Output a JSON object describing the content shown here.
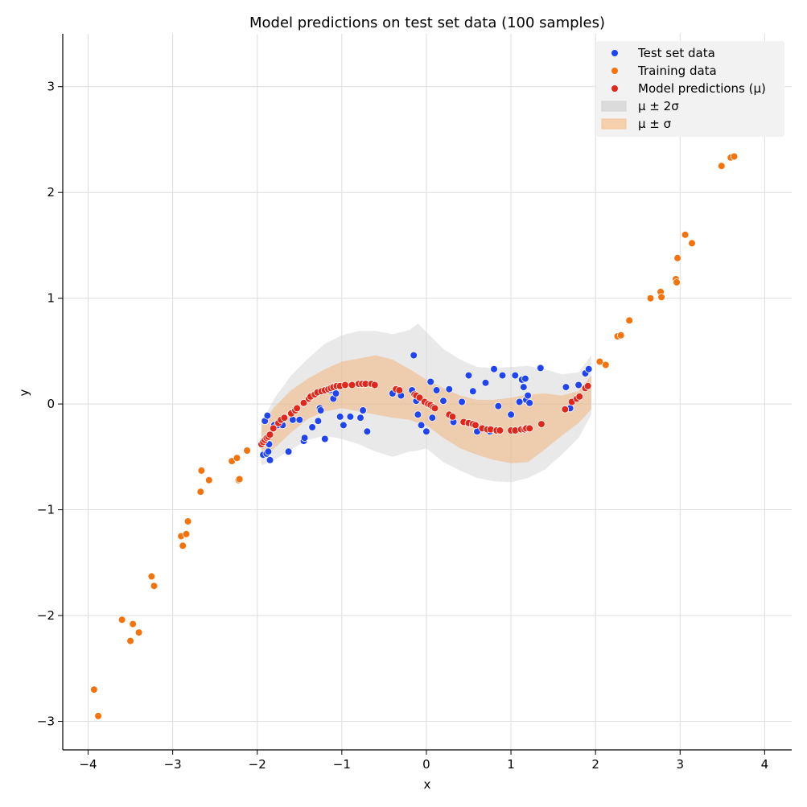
{
  "chart_data": {
    "type": "scatter",
    "title": "Model predictions on test set data (100 samples)",
    "xlabel": "x",
    "ylabel": "y",
    "xlim": [
      -4.3,
      4.32
    ],
    "ylim": [
      -3.27,
      3.5
    ],
    "x_ticks": [
      -4,
      -3,
      -2,
      -1,
      0,
      1,
      2,
      3,
      4
    ],
    "y_ticks": [
      -3,
      -2,
      -1,
      0,
      1,
      2,
      3
    ],
    "x_tick_labels": [
      "−4",
      "−3",
      "−2",
      "−1",
      "0",
      "1",
      "2",
      "3",
      "4"
    ],
    "y_tick_labels": [
      "−3",
      "−2",
      "−1",
      "0",
      "1",
      "2",
      "3"
    ],
    "grid": true,
    "legend_position": "top-right",
    "legend": [
      {
        "label": "Test set data",
        "kind": "point",
        "color": "#1f44f0"
      },
      {
        "label": "Training data",
        "kind": "point",
        "color": "#f5730c"
      },
      {
        "label": "Model predictions (μ)",
        "kind": "point",
        "color": "#e0271b"
      },
      {
        "label": "μ ± 2σ",
        "kind": "band",
        "color": "#d3d3d3"
      },
      {
        "label": "μ ± σ",
        "kind": "band",
        "color": "#f5c496"
      }
    ],
    "colors": {
      "test": "#1f44f0",
      "training": "#f5730c",
      "prediction": "#e0271b",
      "band2": "#d3d3d3",
      "band1": "#f2b47d",
      "grid": "#dddddd"
    },
    "bands": {
      "x": [
        -1.95,
        -1.8,
        -1.6,
        -1.4,
        -1.2,
        -1.0,
        -0.8,
        -0.6,
        -0.4,
        -0.2,
        -0.1,
        0.0,
        0.2,
        0.4,
        0.6,
        0.8,
        1.0,
        1.2,
        1.4,
        1.6,
        1.8,
        1.95
      ],
      "mu": [
        -0.35,
        -0.22,
        -0.07,
        0.05,
        0.13,
        0.18,
        0.19,
        0.17,
        0.12,
        0.08,
        0.06,
        0.02,
        -0.08,
        -0.16,
        -0.22,
        -0.25,
        -0.25,
        -0.22,
        -0.17,
        -0.09,
        0.03,
        0.18
      ],
      "sigma1_lower": [
        -0.52,
        -0.42,
        -0.27,
        -0.14,
        -0.07,
        -0.04,
        -0.07,
        -0.1,
        -0.13,
        -0.15,
        -0.18,
        -0.2,
        -0.32,
        -0.42,
        -0.48,
        -0.53,
        -0.56,
        -0.55,
        -0.43,
        -0.3,
        -0.18,
        -0.05
      ],
      "sigma1_upper": [
        -0.2,
        -0.03,
        0.13,
        0.24,
        0.33,
        0.4,
        0.43,
        0.46,
        0.42,
        0.33,
        0.28,
        0.23,
        0.15,
        0.08,
        0.04,
        0.04,
        0.06,
        0.09,
        0.1,
        0.08,
        0.12,
        0.27
      ],
      "sigma2_lower": [
        -0.58,
        -0.53,
        -0.43,
        -0.34,
        -0.3,
        -0.33,
        -0.38,
        -0.45,
        -0.5,
        -0.45,
        -0.44,
        -0.42,
        -0.55,
        -0.63,
        -0.7,
        -0.73,
        -0.74,
        -0.7,
        -0.62,
        -0.48,
        -0.32,
        -0.1
      ],
      "sigma2_upper": [
        -0.18,
        0.05,
        0.27,
        0.43,
        0.57,
        0.65,
        0.69,
        0.69,
        0.66,
        0.7,
        0.76,
        0.68,
        0.52,
        0.42,
        0.35,
        0.34,
        0.35,
        0.36,
        0.33,
        0.28,
        0.3,
        0.46
      ]
    },
    "series": [
      {
        "name": "Test set data",
        "points": [
          [
            -1.93,
            -0.48
          ],
          [
            -1.91,
            -0.16
          ],
          [
            -1.89,
            -0.47
          ],
          [
            -1.88,
            -0.11
          ],
          [
            -1.87,
            -0.45
          ],
          [
            -1.86,
            -0.38
          ],
          [
            -1.85,
            -0.53
          ],
          [
            -1.8,
            -0.2
          ],
          [
            -1.76,
            -0.2
          ],
          [
            -1.7,
            -0.2
          ],
          [
            -1.63,
            -0.45
          ],
          [
            -1.58,
            -0.15
          ],
          [
            -1.5,
            -0.15
          ],
          [
            -1.45,
            -0.35
          ],
          [
            -1.44,
            -0.32
          ],
          [
            -1.35,
            -0.22
          ],
          [
            -1.28,
            -0.16
          ],
          [
            -1.26,
            -0.04
          ],
          [
            -1.25,
            -0.06
          ],
          [
            -1.2,
            -0.33
          ],
          [
            -1.14,
            0.13
          ],
          [
            -1.1,
            0.05
          ],
          [
            -1.07,
            0.1
          ],
          [
            -1.02,
            -0.12
          ],
          [
            -0.98,
            -0.2
          ],
          [
            -0.9,
            -0.12
          ],
          [
            -0.78,
            -0.13
          ],
          [
            -0.75,
            -0.06
          ],
          [
            -0.7,
            -0.26
          ],
          [
            -0.4,
            0.1
          ],
          [
            -0.3,
            0.08
          ],
          [
            -0.17,
            0.13
          ],
          [
            -0.15,
            0.46
          ],
          [
            -0.12,
            0.03
          ],
          [
            -0.1,
            -0.1
          ],
          [
            -0.06,
            -0.2
          ],
          [
            0.0,
            -0.26
          ],
          [
            0.05,
            0.21
          ],
          [
            0.07,
            -0.13
          ],
          [
            0.12,
            0.13
          ],
          [
            0.2,
            0.03
          ],
          [
            0.27,
            0.14
          ],
          [
            0.32,
            -0.17
          ],
          [
            0.42,
            0.02
          ],
          [
            0.5,
            0.27
          ],
          [
            0.55,
            0.12
          ],
          [
            0.6,
            -0.26
          ],
          [
            0.7,
            0.2
          ],
          [
            0.75,
            -0.26
          ],
          [
            0.8,
            0.33
          ],
          [
            0.85,
            -0.02
          ],
          [
            0.9,
            0.27
          ],
          [
            1.0,
            -0.1
          ],
          [
            1.05,
            0.27
          ],
          [
            1.1,
            0.02
          ],
          [
            1.13,
            0.23
          ],
          [
            1.15,
            0.16
          ],
          [
            1.17,
            0.24
          ],
          [
            1.18,
            0.04
          ],
          [
            1.2,
            0.08
          ],
          [
            1.22,
            0.01
          ],
          [
            1.35,
            0.34
          ],
          [
            1.65,
            0.16
          ],
          [
            1.7,
            -0.04
          ],
          [
            1.8,
            0.18
          ],
          [
            1.88,
            0.29
          ],
          [
            1.92,
            0.33
          ]
        ]
      },
      {
        "name": "Training data",
        "points": [
          [
            -3.93,
            -2.7
          ],
          [
            -3.88,
            -2.95
          ],
          [
            -3.6,
            -2.04
          ],
          [
            -3.5,
            -2.24
          ],
          [
            -3.47,
            -2.08
          ],
          [
            -3.4,
            -2.16
          ],
          [
            -3.25,
            -1.63
          ],
          [
            -3.22,
            -1.72
          ],
          [
            -2.9,
            -1.25
          ],
          [
            -2.88,
            -1.34
          ],
          [
            -2.84,
            -1.23
          ],
          [
            -2.82,
            -1.11
          ],
          [
            -2.67,
            -0.83
          ],
          [
            -2.66,
            -0.63
          ],
          [
            -2.57,
            -0.72
          ],
          [
            -2.3,
            -0.54
          ],
          [
            -2.24,
            -0.51
          ],
          [
            -2.22,
            -0.72
          ],
          [
            -2.21,
            -0.71
          ],
          [
            -2.12,
            -0.44
          ],
          [
            2.05,
            0.4
          ],
          [
            2.12,
            0.37
          ],
          [
            2.26,
            0.64
          ],
          [
            2.3,
            0.65
          ],
          [
            2.4,
            0.79
          ],
          [
            2.65,
            1.0
          ],
          [
            2.77,
            1.06
          ],
          [
            2.78,
            1.01
          ],
          [
            2.95,
            1.18
          ],
          [
            2.96,
            1.15
          ],
          [
            2.97,
            1.38
          ],
          [
            3.06,
            1.6
          ],
          [
            3.14,
            1.52
          ],
          [
            3.49,
            2.25
          ],
          [
            3.6,
            2.33
          ],
          [
            3.64,
            2.34
          ],
          [
            3.75,
            2.86
          ],
          [
            3.81,
            2.73
          ],
          [
            3.91,
            3.17
          ],
          [
            3.94,
            3.18
          ]
        ]
      },
      {
        "name": "Model predictions (μ)",
        "points": [
          [
            -1.95,
            -0.38
          ],
          [
            -1.93,
            -0.36
          ],
          [
            -1.91,
            -0.34
          ],
          [
            -1.89,
            -0.32
          ],
          [
            -1.87,
            -0.31
          ],
          [
            -1.85,
            -0.29
          ],
          [
            -1.81,
            -0.23
          ],
          [
            -1.75,
            -0.18
          ],
          [
            -1.72,
            -0.15
          ],
          [
            -1.68,
            -0.13
          ],
          [
            -1.6,
            -0.09
          ],
          [
            -1.55,
            -0.06
          ],
          [
            -1.53,
            -0.04
          ],
          [
            -1.45,
            0.01
          ],
          [
            -1.39,
            0.05
          ],
          [
            -1.37,
            0.07
          ],
          [
            -1.32,
            0.09
          ],
          [
            -1.29,
            0.11
          ],
          [
            -1.24,
            0.12
          ],
          [
            -1.2,
            0.13
          ],
          [
            -1.16,
            0.14
          ],
          [
            -1.13,
            0.15
          ],
          [
            -1.1,
            0.16
          ],
          [
            -1.06,
            0.17
          ],
          [
            -1.02,
            0.17
          ],
          [
            -0.96,
            0.18
          ],
          [
            -0.88,
            0.18
          ],
          [
            -0.8,
            0.19
          ],
          [
            -0.76,
            0.19
          ],
          [
            -0.72,
            0.19
          ],
          [
            -0.65,
            0.19
          ],
          [
            -0.61,
            0.18
          ],
          [
            -0.36,
            0.14
          ],
          [
            -0.32,
            0.13
          ],
          [
            -0.14,
            0.09
          ],
          [
            -0.12,
            0.08
          ],
          [
            -0.08,
            0.06
          ],
          [
            -0.02,
            0.02
          ],
          [
            0.02,
            0.0
          ],
          [
            0.05,
            -0.01
          ],
          [
            0.08,
            -0.03
          ],
          [
            0.1,
            -0.04
          ],
          [
            0.27,
            -0.1
          ],
          [
            0.31,
            -0.12
          ],
          [
            0.44,
            -0.17
          ],
          [
            0.5,
            -0.18
          ],
          [
            0.55,
            -0.19
          ],
          [
            0.58,
            -0.2
          ],
          [
            0.66,
            -0.23
          ],
          [
            0.72,
            -0.24
          ],
          [
            0.76,
            -0.24
          ],
          [
            0.83,
            -0.25
          ],
          [
            0.87,
            -0.25
          ],
          [
            1.0,
            -0.25
          ],
          [
            1.05,
            -0.25
          ],
          [
            1.12,
            -0.24
          ],
          [
            1.16,
            -0.24
          ],
          [
            1.18,
            -0.23
          ],
          [
            1.22,
            -0.23
          ],
          [
            1.36,
            -0.19
          ],
          [
            1.64,
            -0.05
          ],
          [
            1.72,
            0.02
          ],
          [
            1.78,
            0.05
          ],
          [
            1.81,
            0.07
          ],
          [
            1.88,
            0.15
          ],
          [
            1.91,
            0.17
          ]
        ]
      }
    ]
  }
}
